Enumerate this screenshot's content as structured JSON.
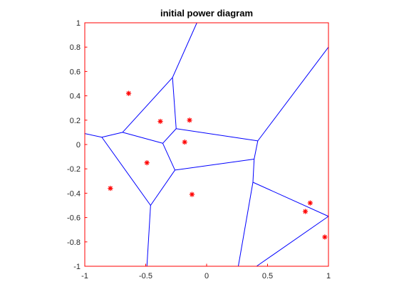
{
  "chart_data": {
    "type": "line",
    "title": "initial power diagram",
    "xlabel": "",
    "ylabel": "",
    "xlim": [
      -1,
      1
    ],
    "ylim": [
      -1,
      1
    ],
    "xticks": [
      -1,
      -0.5,
      0,
      0.5,
      1
    ],
    "yticks": [
      -1,
      -0.8,
      -0.6,
      -0.4,
      -0.2,
      0,
      0.2,
      0.4,
      0.6,
      0.8,
      1
    ],
    "xtick_labels": [
      "-1",
      "-0.5",
      "0",
      "0.5",
      "1"
    ],
    "ytick_labels": [
      "-1",
      "-0.8",
      "-0.6",
      "-0.4",
      "-0.2",
      "0",
      "0.2",
      "0.4",
      "0.6",
      "0.8",
      "1"
    ],
    "grid": false,
    "box_color": "#ff0000",
    "edge_color": "#0000ff",
    "marker_color": "#ff0000",
    "marker": "asterisk",
    "edges": [
      [
        [
          -1.0,
          0.09
        ],
        [
          -0.86,
          0.06
        ]
      ],
      [
        [
          -0.86,
          0.06
        ],
        [
          -0.69,
          0.1
        ]
      ],
      [
        [
          -0.69,
          0.1
        ],
        [
          -0.28,
          0.55
        ]
      ],
      [
        [
          -0.28,
          0.55
        ],
        [
          -0.08,
          1.0
        ]
      ],
      [
        [
          -0.28,
          0.55
        ],
        [
          -0.25,
          0.13
        ]
      ],
      [
        [
          -0.69,
          0.1
        ],
        [
          -0.36,
          0.01
        ]
      ],
      [
        [
          -0.36,
          0.01
        ],
        [
          -0.25,
          0.13
        ]
      ],
      [
        [
          -0.25,
          0.13
        ],
        [
          0.42,
          0.03
        ]
      ],
      [
        [
          0.42,
          0.03
        ],
        [
          1.0,
          0.8
        ]
      ],
      [
        [
          0.42,
          0.03
        ],
        [
          0.39,
          -0.12
        ]
      ],
      [
        [
          -0.36,
          0.01
        ],
        [
          -0.26,
          -0.21
        ]
      ],
      [
        [
          -0.26,
          -0.21
        ],
        [
          0.39,
          -0.12
        ]
      ],
      [
        [
          -0.86,
          0.06
        ],
        [
          -0.46,
          -0.5
        ]
      ],
      [
        [
          -0.26,
          -0.21
        ],
        [
          -0.46,
          -0.5
        ]
      ],
      [
        [
          -0.46,
          -0.5
        ],
        [
          -0.49,
          -1.0
        ]
      ],
      [
        [
          0.39,
          -0.12
        ],
        [
          0.38,
          -0.31
        ]
      ],
      [
        [
          0.38,
          -0.31
        ],
        [
          0.26,
          -1.0
        ]
      ],
      [
        [
          0.38,
          -0.31
        ],
        [
          1.0,
          -0.59
        ]
      ],
      [
        [
          1.0,
          -0.59
        ],
        [
          0.41,
          -1.0
        ]
      ]
    ],
    "points": [
      {
        "x": -0.64,
        "y": 0.42
      },
      {
        "x": -0.38,
        "y": 0.19
      },
      {
        "x": -0.14,
        "y": 0.2
      },
      {
        "x": -0.18,
        "y": 0.02
      },
      {
        "x": -0.49,
        "y": -0.15
      },
      {
        "x": -0.79,
        "y": -0.36
      },
      {
        "x": -0.12,
        "y": -0.41
      },
      {
        "x": 0.85,
        "y": -0.48
      },
      {
        "x": 0.81,
        "y": -0.55
      },
      {
        "x": 0.97,
        "y": -0.76
      }
    ]
  }
}
